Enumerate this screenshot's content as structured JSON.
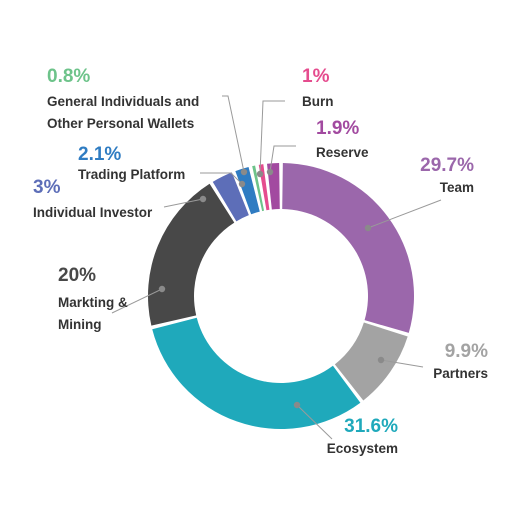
{
  "chart_data": {
    "type": "pie",
    "variant": "donut",
    "title": "",
    "legend": "none",
    "slices": [
      {
        "label": "Team",
        "value": 29.7,
        "display": "29.7%",
        "color": "#9b67ab"
      },
      {
        "label": "Partners",
        "value": 9.9,
        "display": "9.9%",
        "color": "#a3a3a3"
      },
      {
        "label": "Ecosystem",
        "value": 31.6,
        "display": "31.6%",
        "color": "#1fa9bb"
      },
      {
        "label": "Markting &\nMining",
        "value": 20,
        "display": "20%",
        "color": "#484848"
      },
      {
        "label": "Individual Investor",
        "value": 3,
        "display": "3%",
        "color": "#5d6eb8"
      },
      {
        "label": "Trading Platform",
        "value": 2.1,
        "display": "2.1%",
        "color": "#2f7cc2"
      },
      {
        "label": "General Individuals and\nOther Personal Wallets",
        "value": 0.8,
        "display": "0.8%",
        "color": "#6dc38a"
      },
      {
        "label": "Burn",
        "value": 1,
        "display": "1%",
        "color": "#e54c8e"
      },
      {
        "label": "Reserve",
        "value": 1.9,
        "display": "1.9%",
        "color": "#a24aa0"
      }
    ]
  }
}
